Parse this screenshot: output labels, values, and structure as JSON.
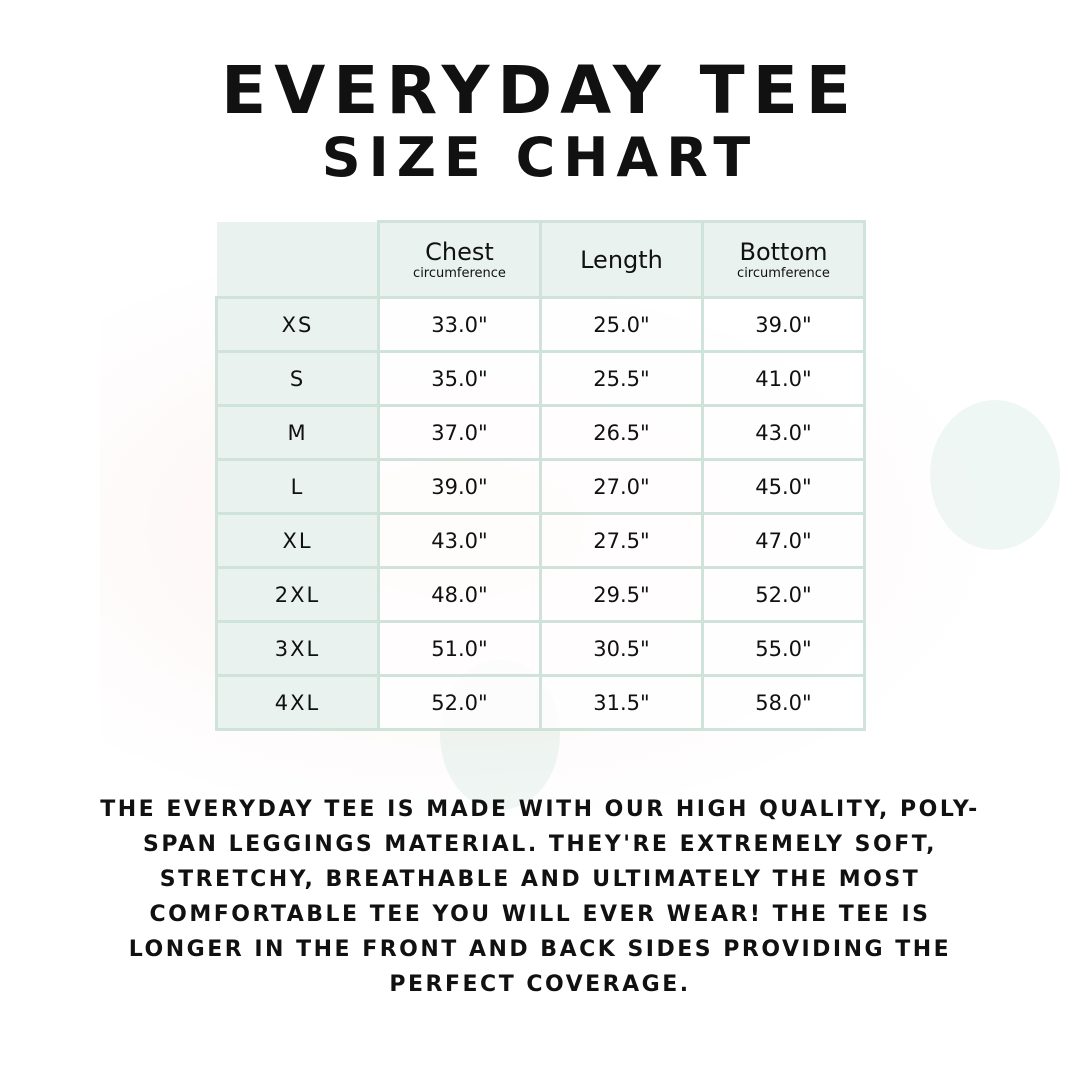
{
  "title": {
    "line1": "EVERYDAY TEE",
    "line2": "SIZE CHART"
  },
  "table": {
    "headers": [
      {
        "main": "Chest",
        "sub": "circumference"
      },
      {
        "main": "Length",
        "sub": ""
      },
      {
        "main": "Bottom",
        "sub": "circumference"
      }
    ],
    "rows": [
      {
        "size": "XS",
        "values": [
          "33.0\"",
          "25.0\"",
          "39.0\""
        ]
      },
      {
        "size": "S",
        "values": [
          "35.0\"",
          "25.5\"",
          "41.0\""
        ]
      },
      {
        "size": "M",
        "values": [
          "37.0\"",
          "26.5\"",
          "43.0\""
        ]
      },
      {
        "size": "L",
        "values": [
          "39.0\"",
          "27.0\"",
          "45.0\""
        ]
      },
      {
        "size": "XL",
        "values": [
          "43.0\"",
          "27.5\"",
          "47.0\""
        ]
      },
      {
        "size": "2XL",
        "values": [
          "48.0\"",
          "29.5\"",
          "52.0\""
        ]
      },
      {
        "size": "3XL",
        "values": [
          "51.0\"",
          "30.5\"",
          "55.0\""
        ]
      },
      {
        "size": "4XL",
        "values": [
          "52.0\"",
          "31.5\"",
          "58.0\""
        ]
      }
    ]
  },
  "description": "The Everyday Tee is made with our high quality, poly-span leggings material. They're extremely soft, stretchy, breathable and ultimately the most comfortable tee you will ever wear! The tee is longer in the front and back sides providing the perfect coverage.",
  "colors": {
    "border": "#cfe3da",
    "header_fill": "#e9f2ee"
  }
}
